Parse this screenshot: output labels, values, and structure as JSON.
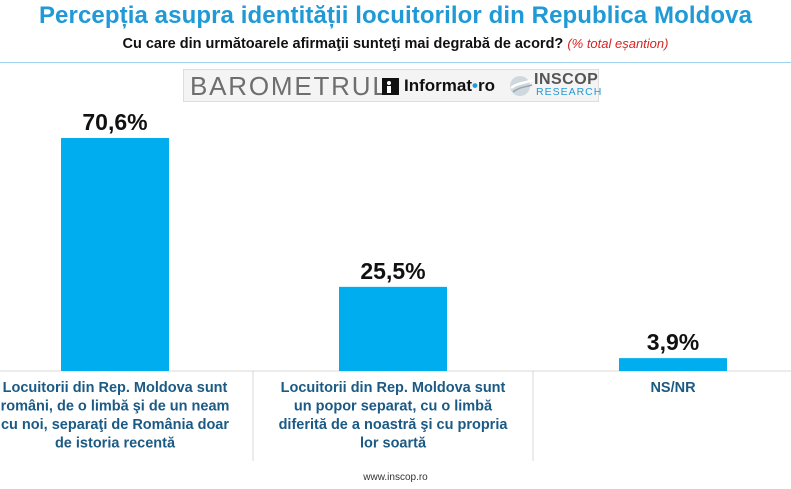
{
  "header": {
    "title": "Percepția asupra identității locuitorilor din Republica Moldova",
    "subtitle": "Cu care din următoarele afirmaţii sunteţi mai degrabă de acord?",
    "subtitle_note": "(% total eșantion)"
  },
  "logos": {
    "barometrul": "BAROMETRUL",
    "informat_main": "Informat",
    "informat_sep": "•",
    "informat_tld": "ro",
    "inscop_main": "INSCOP",
    "inscop_sub": "RESEARCH"
  },
  "chart_data": {
    "type": "bar",
    "title": "Percepția asupra identității locuitorilor din Republica Moldova",
    "categories": [
      "Locuitorii din Rep. Moldova sunt români, de o limbă şi de un neam cu noi, separaţi de România doar de istoria recentă",
      "Locuitorii din Rep. Moldova sunt un popor separat, cu o limbă diferită de a noastră şi cu propria lor soartă",
      "NS/NR"
    ],
    "category_lines": [
      [
        "Locuitorii din Rep. Moldova sunt",
        "români, de o limbă şi de un neam",
        "cu noi, separaţi de România doar",
        "de istoria recentă"
      ],
      [
        "Locuitorii din Rep. Moldova sunt",
        "un popor separat, cu o limbă",
        "diferită de a noastră şi cu propria",
        "lor soartă"
      ],
      [
        "NS/NR"
      ]
    ],
    "values": [
      70.6,
      25.5,
      3.9
    ],
    "value_labels": [
      "70,6%",
      "25,5%",
      "3,9%"
    ],
    "ylim": [
      0,
      80
    ],
    "bar_color": "#00aeef",
    "grid": false,
    "legend": "none"
  },
  "footer": {
    "url": "www.inscop.ro"
  }
}
